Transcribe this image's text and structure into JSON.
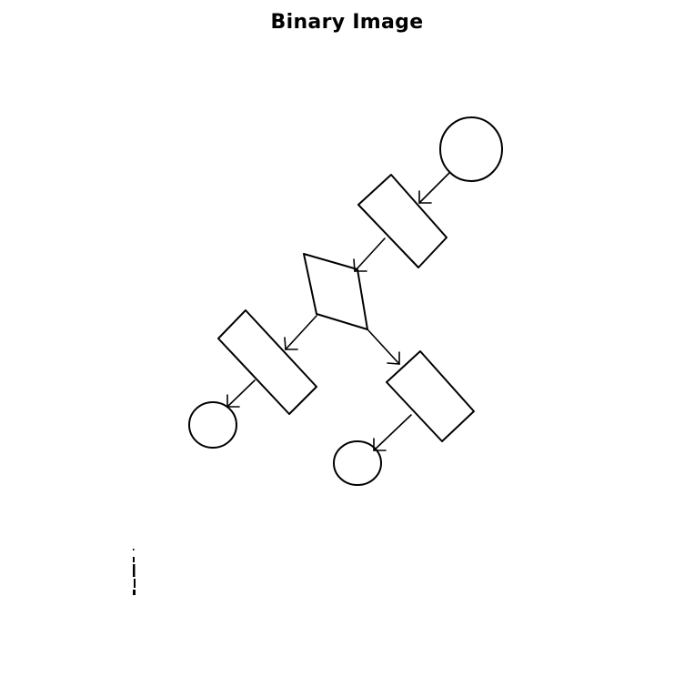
{
  "figure": {
    "title": "Binary Image"
  },
  "diagram": {
    "style": "hand-drawn flowchart, binarized",
    "foreground_color": "#000000",
    "background_color": "#ffffff",
    "nodes": [
      {
        "id": "start",
        "shape": "circle"
      },
      {
        "id": "process-1",
        "shape": "rectangle"
      },
      {
        "id": "decision",
        "shape": "parallelogram"
      },
      {
        "id": "process-left",
        "shape": "rectangle"
      },
      {
        "id": "process-right",
        "shape": "rectangle"
      },
      {
        "id": "end-left",
        "shape": "circle"
      },
      {
        "id": "end-right",
        "shape": "circle"
      }
    ],
    "edges": [
      {
        "from": "start",
        "to": "process-1"
      },
      {
        "from": "process-1",
        "to": "decision"
      },
      {
        "from": "decision",
        "to": "process-left"
      },
      {
        "from": "decision",
        "to": "process-right"
      },
      {
        "from": "process-left",
        "to": "end-left"
      },
      {
        "from": "process-right",
        "to": "end-right"
      }
    ]
  }
}
